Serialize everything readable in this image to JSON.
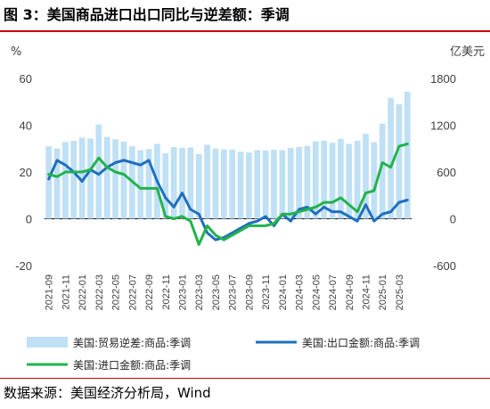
{
  "header": {
    "title": "图 3：美国商品进口出口同比与逆差额：季调"
  },
  "footer": {
    "source": "数据来源：美国经济分析局，Wind"
  },
  "chart_data": {
    "type": "bar+line",
    "left_axis": {
      "unit": "%",
      "ylim": [
        -20,
        60
      ],
      "ticks": [
        -20,
        0,
        20,
        40,
        60
      ]
    },
    "right_axis": {
      "unit": "亿美元",
      "ylim": [
        -600,
        1800
      ],
      "ticks": [
        -600,
        0,
        600,
        1200,
        1800
      ]
    },
    "x": [
      "2021-09",
      "2021-10",
      "2021-11",
      "2021-12",
      "2022-01",
      "2022-02",
      "2022-03",
      "2022-04",
      "2022-05",
      "2022-06",
      "2022-07",
      "2022-08",
      "2022-09",
      "2022-10",
      "2022-11",
      "2022-12",
      "2023-01",
      "2023-02",
      "2023-03",
      "2023-04",
      "2023-05",
      "2023-06",
      "2023-07",
      "2023-08",
      "2023-09",
      "2023-10",
      "2023-11",
      "2023-12",
      "2024-01",
      "2024-02",
      "2024-03",
      "2024-04",
      "2024-05",
      "2024-06",
      "2024-07",
      "2024-08",
      "2024-09",
      "2024-10",
      "2024-11",
      "2024-12",
      "2025-01",
      "2025-02",
      "2025-03",
      "2025-04"
    ],
    "x_tick_labels": [
      "2021-09",
      "2021-11",
      "2022-01",
      "2022-03",
      "2022-05",
      "2022-07",
      "2022-09",
      "2022-11",
      "2023-01",
      "2023-03",
      "2023-05",
      "2023-07",
      "2023-09",
      "2023-11",
      "2024-01",
      "2024-03",
      "2024-05",
      "2024-07",
      "2024-09",
      "2024-11",
      "2025-01",
      "2025-03"
    ],
    "series": [
      {
        "name": "美国:贸易逆差:商品:季调",
        "kind": "bar",
        "axis": "right",
        "color": "#bfe0f5",
        "values": [
          930,
          900,
          985,
          1000,
          1040,
          1030,
          1210,
          1050,
          1020,
          990,
          930,
          880,
          895,
          960,
          840,
          920,
          910,
          915,
          830,
          950,
          900,
          890,
          885,
          860,
          850,
          880,
          875,
          885,
          880,
          910,
          920,
          935,
          995,
          1000,
          975,
          1025,
          960,
          1000,
          1090,
          980,
          1220,
          1550,
          1470,
          1630
        ]
      },
      {
        "name": "美国:出口金额:商品:季调",
        "kind": "line",
        "axis": "left",
        "color": "#1f6fbd",
        "values": [
          17,
          25,
          23,
          20,
          16,
          21,
          19,
          22,
          24,
          25,
          24,
          23,
          25,
          16,
          9,
          5,
          11,
          4,
          2,
          -6,
          -9,
          -8,
          -6,
          -4,
          -2,
          -1,
          1,
          -3,
          2,
          -1,
          4,
          5,
          2,
          5,
          3,
          3,
          1,
          -1,
          6,
          -1,
          2,
          3,
          7,
          8
        ]
      },
      {
        "name": "美国:进口金额:商品:季调",
        "kind": "line",
        "axis": "left",
        "color": "#21b34b",
        "values": [
          19,
          18,
          20,
          20,
          20,
          21,
          26,
          22,
          20,
          19,
          16,
          13,
          13,
          13,
          1,
          0,
          1,
          -1,
          -11,
          -3,
          -7,
          -9,
          -7,
          -5,
          -3,
          -3,
          -3,
          -2,
          2,
          2,
          3,
          4,
          5,
          7,
          7,
          9,
          6,
          3,
          11,
          12,
          24,
          22,
          31,
          32
        ]
      }
    ]
  }
}
